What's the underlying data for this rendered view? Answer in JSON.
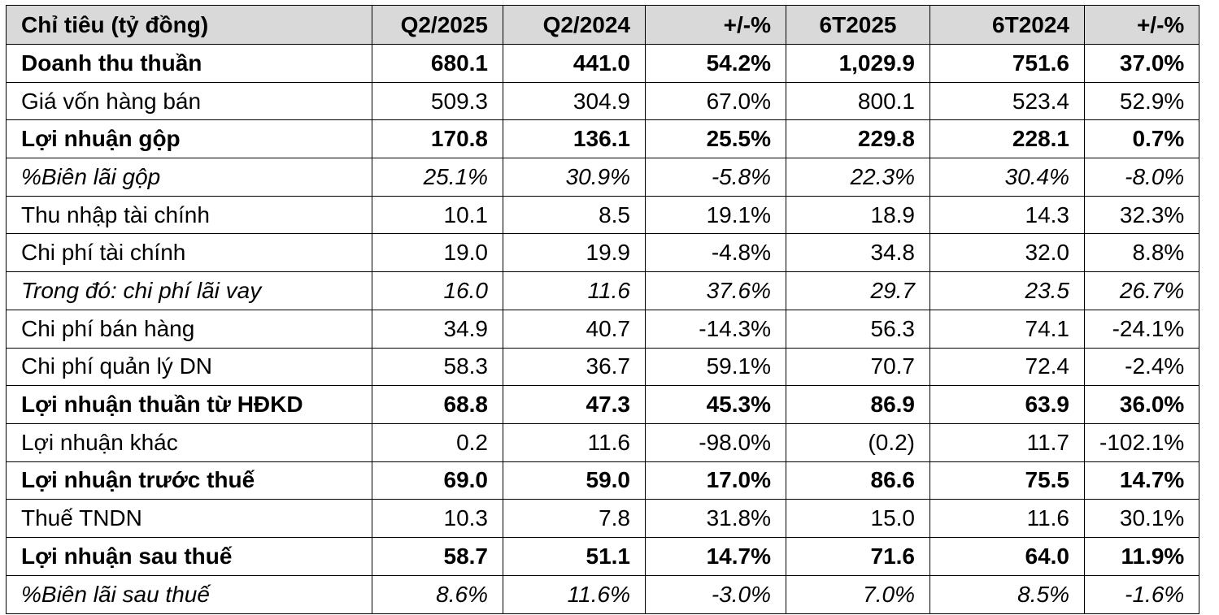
{
  "table": {
    "headers": [
      "Chỉ tiêu (tỷ đồng)",
      "Q2/2025",
      "Q2/2024",
      "+/-%",
      "6T2025",
      "6T2024",
      "+/-%"
    ],
    "rows": [
      {
        "style": "bold",
        "cells": [
          "Doanh thu thuần",
          "680.1",
          "441.0",
          "54.2%",
          "1,029.9",
          "751.6",
          "37.0%"
        ]
      },
      {
        "style": "normal",
        "cells": [
          "Giá vốn hàng bán",
          "509.3",
          "304.9",
          "67.0%",
          "800.1",
          "523.4",
          "52.9%"
        ]
      },
      {
        "style": "bold",
        "cells": [
          "Lợi nhuận gộp",
          "170.8",
          "136.1",
          "25.5%",
          "229.8",
          "228.1",
          "0.7%"
        ]
      },
      {
        "style": "italic",
        "cells": [
          "%Biên lãi gộp",
          "25.1%",
          "30.9%",
          "-5.8%",
          "22.3%",
          "30.4%",
          "-8.0%"
        ]
      },
      {
        "style": "normal",
        "cells": [
          "Thu nhập tài chính",
          "10.1",
          "8.5",
          "19.1%",
          "18.9",
          "14.3",
          "32.3%"
        ]
      },
      {
        "style": "normal",
        "cells": [
          "Chi phí tài chính",
          "19.0",
          "19.9",
          "-4.8%",
          "34.8",
          "32.0",
          "8.8%"
        ]
      },
      {
        "style": "italic",
        "cells": [
          "Trong đó: chi phí lãi vay",
          "16.0",
          "11.6",
          "37.6%",
          "29.7",
          "23.5",
          "26.7%"
        ]
      },
      {
        "style": "normal",
        "cells": [
          "Chi phí bán hàng",
          "34.9",
          "40.7",
          "-14.3%",
          "56.3",
          "74.1",
          "-24.1%"
        ]
      },
      {
        "style": "normal",
        "cells": [
          "Chi phí quản lý DN",
          "58.3",
          "36.7",
          "59.1%",
          "70.7",
          "72.4",
          "-2.4%"
        ]
      },
      {
        "style": "bold",
        "cells": [
          "Lợi nhuận thuần từ HĐKD",
          "68.8",
          "47.3",
          "45.3%",
          "86.9",
          "63.9",
          "36.0%"
        ]
      },
      {
        "style": "normal",
        "cells": [
          "Lợi nhuận khác",
          "0.2",
          "11.6",
          "-98.0%",
          "(0.2)",
          "11.7",
          "-102.1%"
        ]
      },
      {
        "style": "bold",
        "cells": [
          "Lợi nhuận trước thuế",
          "69.0",
          "59.0",
          "17.0%",
          "86.6",
          "75.5",
          "14.7%"
        ]
      },
      {
        "style": "normal",
        "cells": [
          "Thuế TNDN",
          "10.3",
          "7.8",
          "31.8%",
          "15.0",
          "11.6",
          "30.1%"
        ]
      },
      {
        "style": "bold",
        "cells": [
          "Lợi nhuận sau thuế",
          "58.7",
          "51.1",
          "14.7%",
          "71.6",
          "64.0",
          "11.9%"
        ]
      },
      {
        "style": "italic",
        "cells": [
          "%Biên lãi sau thuế",
          "8.6%",
          "11.6%",
          "-3.0%",
          "7.0%",
          "8.5%",
          "-1.6%"
        ]
      }
    ]
  }
}
